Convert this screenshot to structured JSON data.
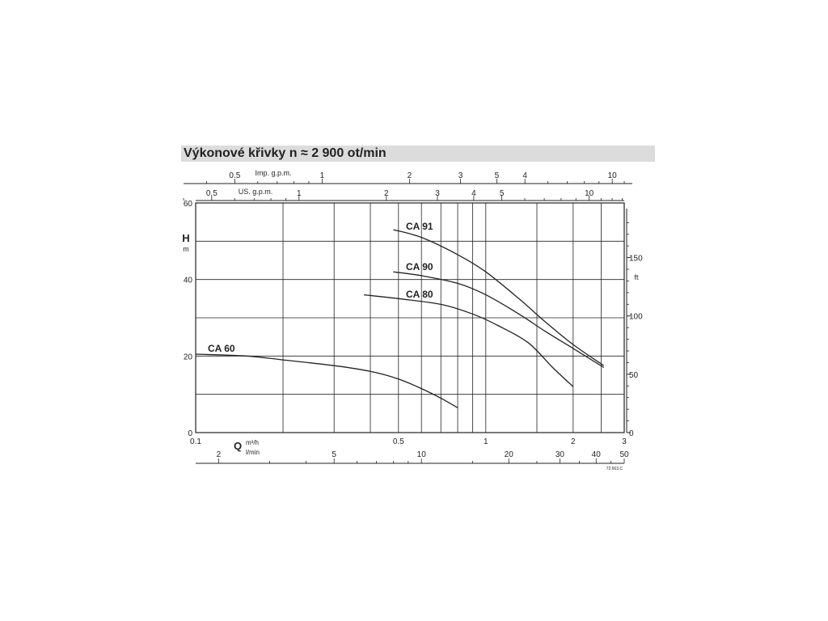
{
  "title": "Výkonové křivky n ≈ 2 900 ot/min",
  "colors": {
    "line": "#222222",
    "title_band": "#dcdcdc",
    "background": "#ffffff"
  },
  "chart_data": {
    "type": "line",
    "title": "Výkonové křivky n ≈ 2 900 ot/min",
    "x_scale": "log",
    "xlim": [
      0.1,
      3
    ],
    "xlabel": "Q",
    "xunit_primary": "m³/h",
    "xunit_secondary": "l/min",
    "ylabel": "H",
    "yunit": "m",
    "ylim": [
      0,
      60
    ],
    "yticks": [
      0,
      20,
      40,
      60
    ],
    "right_axis": {
      "unit": "ft",
      "ticks": [
        0,
        50,
        100,
        150
      ]
    },
    "x_ticks_m3h": [
      "0.1",
      "0.5",
      "1",
      "2",
      "3"
    ],
    "x_ticks_lmin": [
      "2",
      "5",
      "10",
      "20",
      "30",
      "40",
      "50"
    ],
    "top_axis_imp": {
      "label": "Imp. g.p.m.",
      "ticks": [
        "0.5",
        "1",
        "2",
        "3",
        "5",
        "4",
        "10"
      ]
    },
    "top_axis_us": {
      "label": "US. g.p.m.",
      "ticks": [
        "0.5",
        "1",
        "2",
        "3",
        "4",
        "5",
        "10"
      ]
    },
    "grid": true,
    "reference": "72.663.C",
    "series": [
      {
        "name": "CA 91",
        "x": [
          0.48,
          0.6,
          0.8,
          1.0,
          1.3,
          1.6,
          2.0,
          2.55
        ],
        "y": [
          53,
          51,
          46.5,
          42,
          35,
          29,
          23,
          17.5
        ]
      },
      {
        "name": "CA 90",
        "x": [
          0.48,
          0.6,
          0.8,
          1.0,
          1.3,
          1.6,
          2.0,
          2.55
        ],
        "y": [
          42,
          41,
          39,
          36,
          31,
          26.5,
          22,
          17
        ]
      },
      {
        "name": "CA 80",
        "x": [
          0.38,
          0.5,
          0.7,
          0.9,
          1.1,
          1.4,
          1.7,
          2.0
        ],
        "y": [
          36,
          35,
          33.5,
          31,
          28,
          23.5,
          17,
          12
        ]
      },
      {
        "name": "CA 60",
        "x": [
          0.1,
          0.15,
          0.2,
          0.3,
          0.4,
          0.5,
          0.6,
          0.7,
          0.8
        ],
        "y": [
          20.5,
          20,
          19,
          17.5,
          16,
          14,
          11.5,
          9,
          6.5
        ]
      }
    ]
  }
}
